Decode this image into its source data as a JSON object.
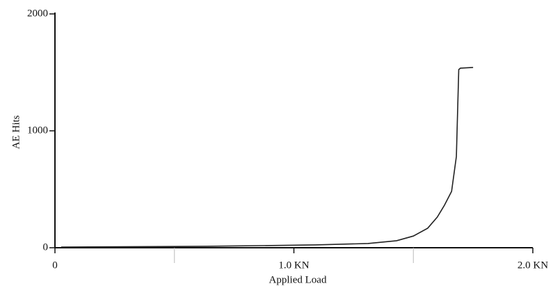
{
  "chart_data": {
    "type": "line",
    "x_label": "Applied Load",
    "y_label": "AE Hits",
    "xlim": [
      0,
      2
    ],
    "ylim": [
      0,
      2000
    ],
    "xticks": [
      0,
      {
        "value": 1,
        "label": "1.0 KN"
      },
      {
        "value": 2,
        "label": "2.0 KN"
      }
    ],
    "xminorticks": [
      0.5,
      1.5
    ],
    "yticks": [
      0,
      1000,
      2000
    ],
    "color": "#222222",
    "x": [
      0.026,
      0.63,
      1.09,
      1.31,
      1.43,
      1.5,
      1.56,
      1.6,
      1.63,
      1.66,
      1.67,
      1.68,
      1.686,
      1.69,
      1.697,
      1.75
    ],
    "values": [
      6,
      12,
      24,
      36,
      60,
      100,
      167,
      262,
      363,
      482,
      631,
      780,
      1226,
      1524,
      1536,
      1542
    ]
  }
}
